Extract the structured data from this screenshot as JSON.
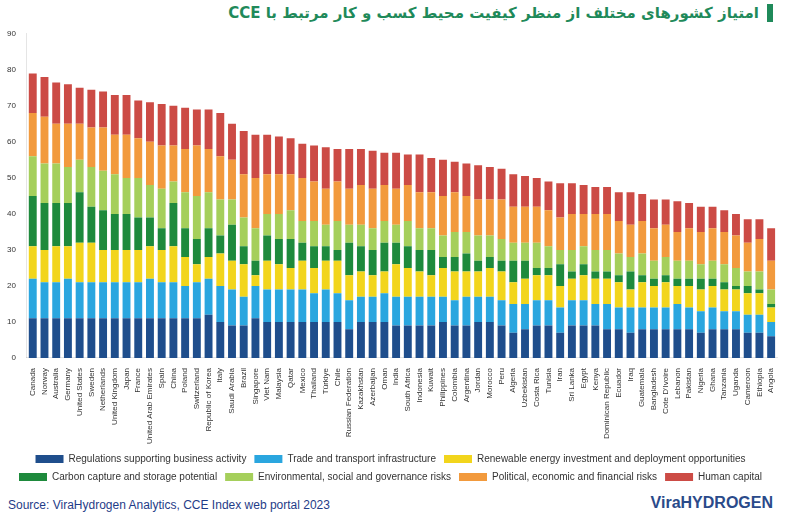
{
  "chart_data": {
    "type": "bar",
    "title": "امتیاز کشورهای مختلف از منظر کیفیت محیط کسب و کار مرتبط با CCE",
    "annotations": [
      "Source: ViraHydrogen Analytics, CCE Index web portal 2023",
      "ViraHYDROGEN"
    ],
    "categories": [
      "Canada",
      "Norway",
      "Australia",
      "Germany",
      "United States",
      "Sweden",
      "Netherlands",
      "United Kingdom",
      "Japan",
      "France",
      "United Arab Emirates",
      "Spain",
      "China",
      "Poland",
      "Switzerland",
      "Republic of Korea",
      "Italy",
      "Saudi Arabia",
      "Brazil",
      "Singapore",
      "Viet Nam",
      "Malaysia",
      "Qatar",
      "Mexico",
      "Thailand",
      "Türkiye",
      "Chile",
      "Russian Federation",
      "Kazakhstan",
      "Azerbaijan",
      "Oman",
      "India",
      "South Africa",
      "Indonesia",
      "Kuwait",
      "Philippines",
      "Colombia",
      "Argentina",
      "Jordan",
      "Morocco",
      "Peru",
      "Algeria",
      "Uzbekistan",
      "Costa Rica",
      "Tunisia",
      "Iran",
      "Sri Lanka",
      "Egypt",
      "Kenya",
      "Dominican Republic",
      "Ecuador",
      "Iraq",
      "Guatemala",
      "Bangladesh",
      "Cote D'Ivoire",
      "Lebanon",
      "Pakistan",
      "Nigeria",
      "Ghana",
      "Tanzania",
      "Uganda",
      "Cameroon",
      "Ethiopia",
      "Angola"
    ],
    "series": [
      {
        "name": "Regulations supporting business activity",
        "color": "#1f4e8c",
        "values": [
          11,
          11,
          11,
          11,
          11,
          11,
          11,
          11,
          11,
          11,
          11,
          11,
          11,
          11,
          11,
          12,
          10,
          9,
          9,
          11,
          10,
          10,
          10,
          10,
          10,
          10,
          10,
          8,
          10,
          10,
          10,
          9,
          9,
          9,
          9,
          10,
          9,
          9,
          10,
          10,
          9,
          7,
          8,
          9,
          9,
          7,
          9,
          9,
          9,
          8,
          8,
          7,
          8,
          8,
          8,
          8,
          8,
          7,
          8,
          8,
          8,
          7,
          7,
          6
        ]
      },
      {
        "name": "Trade and transport infrastructure",
        "color": "#2aa6df",
        "values": [
          11,
          10,
          10,
          11,
          10,
          10,
          10,
          10,
          10,
          10,
          11,
          10,
          10,
          9,
          10,
          10,
          10,
          10,
          8,
          9,
          9,
          9,
          9,
          9,
          8,
          9,
          8,
          8,
          7,
          7,
          8,
          8,
          8,
          8,
          8,
          7,
          7,
          8,
          7,
          7,
          7,
          8,
          7,
          7,
          7,
          7,
          7,
          7,
          6,
          7,
          6,
          7,
          6,
          6,
          6,
          7,
          6,
          6,
          6,
          5,
          5,
          5,
          5,
          4
        ]
      },
      {
        "name": "Renewable energy investment and deployment opportunities",
        "color": "#f2d51c",
        "values": [
          9,
          9,
          10,
          9,
          11,
          11,
          9,
          9,
          9,
          9,
          9,
          9,
          10,
          8,
          5,
          6,
          9,
          8,
          9,
          3,
          8,
          7,
          6,
          8,
          7,
          8,
          9,
          7,
          7,
          6,
          6,
          9,
          8,
          7,
          6,
          8,
          8,
          7,
          7,
          8,
          8,
          6,
          7,
          7,
          7,
          6,
          6,
          7,
          7,
          7,
          7,
          5,
          7,
          6,
          7,
          5,
          6,
          6,
          6,
          6,
          6,
          6,
          6,
          4
        ]
      },
      {
        "name": "Carbon capture and storage potential",
        "color": "#1e8a3c",
        "values": [
          14,
          13,
          12,
          12,
          14,
          10,
          11,
          10,
          10,
          9,
          8,
          6,
          12,
          8,
          7,
          8,
          5,
          10,
          5,
          4,
          7,
          7,
          8,
          5,
          6,
          4,
          3,
          9,
          7,
          7,
          8,
          6,
          6,
          6,
          7,
          3,
          4,
          5,
          3,
          3,
          3,
          6,
          5,
          2,
          2,
          6,
          2,
          3,
          2,
          2,
          2,
          5,
          2,
          2,
          2,
          2,
          2,
          3,
          2,
          2,
          1,
          2,
          1,
          1
        ]
      },
      {
        "name": "Environmental, social and governance risks",
        "color": "#a5cf5b",
        "values": [
          11,
          11,
          11,
          10,
          9,
          11,
          11,
          11,
          10,
          11,
          9,
          11,
          6,
          10,
          12,
          10,
          10,
          7,
          8,
          9,
          6,
          7,
          8,
          6,
          7,
          6,
          8,
          5,
          6,
          6,
          6,
          5,
          7,
          6,
          6,
          6,
          7,
          6,
          7,
          6,
          6,
          5,
          5,
          7,
          6,
          4,
          6,
          5,
          6,
          6,
          6,
          4,
          6,
          5,
          5,
          5,
          5,
          4,
          5,
          5,
          5,
          4,
          5,
          4
        ]
      },
      {
        "name": "Political, economic and financial risks",
        "color": "#f29a3d",
        "values": [
          12,
          13,
          11,
          12,
          10,
          11,
          12,
          11,
          12,
          11,
          12,
          12,
          10,
          12,
          14,
          12,
          12,
          11,
          12,
          14,
          11,
          11,
          10,
          12,
          11,
          10,
          11,
          10,
          11,
          11,
          10,
          10,
          10,
          10,
          10,
          11,
          11,
          10,
          10,
          10,
          11,
          10,
          10,
          10,
          10,
          9,
          10,
          9,
          10,
          10,
          9,
          9,
          9,
          9,
          9,
          8,
          9,
          9,
          9,
          9,
          9,
          8,
          9,
          8
        ]
      },
      {
        "name": "Human capital",
        "color": "#cc4b45",
        "values": [
          11,
          11,
          11.5,
          11,
          10,
          10.5,
          10,
          11,
          11,
          10.5,
          11,
          11.5,
          11,
          11.5,
          10,
          11,
          12,
          10,
          12,
          12,
          11,
          10.5,
          10,
          9.5,
          10,
          11.5,
          9,
          11,
          10,
          10.5,
          9,
          10,
          8.5,
          10.5,
          9.5,
          10,
          8.5,
          9,
          9.5,
          9,
          8.5,
          9,
          8.5,
          8,
          8,
          9.5,
          8.5,
          8,
          7.5,
          7.5,
          8,
          9,
          7.5,
          8,
          7,
          8.5,
          7,
          7,
          6,
          6,
          6,
          6.5,
          5.5,
          9
        ]
      }
    ],
    "ylim": [
      0,
      90
    ],
    "yticks": [
      0,
      10,
      20,
      30,
      40,
      50,
      60,
      70,
      80,
      90
    ],
    "stacked": true,
    "grid": false,
    "legend": "bottom"
  }
}
